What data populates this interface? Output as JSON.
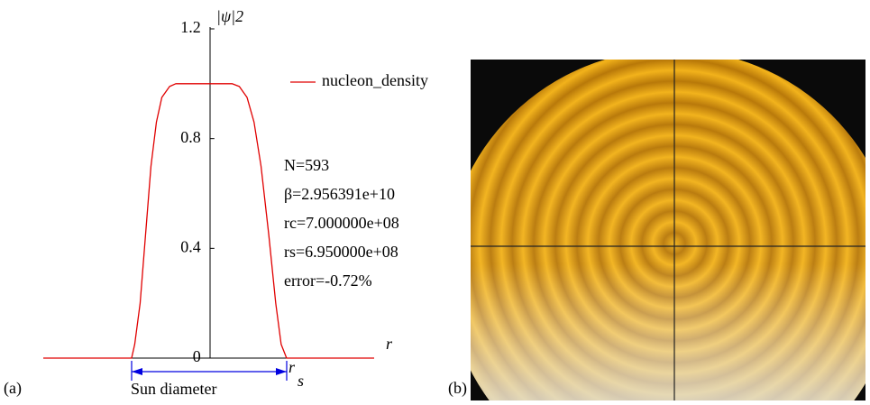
{
  "chart_data": {
    "type": "line",
    "y_label": "|ψ|2",
    "x_label": "r",
    "x": [
      -2.15,
      -1.01,
      -0.97,
      -0.9,
      -0.83,
      -0.76,
      -0.69,
      -0.62,
      -0.52,
      -0.44,
      0.29,
      0.38,
      0.48,
      0.57,
      0.66,
      0.76,
      0.85,
      0.92,
      0.99,
      2.12
    ],
    "series": [
      {
        "name": "nucleon_density",
        "color": "#e00000",
        "values": [
          0,
          0,
          0.05,
          0.2,
          0.45,
          0.7,
          0.86,
          0.95,
          0.99,
          1,
          1,
          0.99,
          0.95,
          0.86,
          0.7,
          0.45,
          0.2,
          0.05,
          0,
          0
        ]
      }
    ],
    "xlim": [
      -2.15,
      2.12
    ],
    "ylim": [
      0,
      1.2
    ],
    "yticks": [
      0,
      0.4,
      0.8,
      1.2
    ],
    "annotations": [
      "N=593",
      "β=2.956391e+10",
      "rc=7.000000e+08",
      "rs=6.950000e+08",
      "error=-0.72%"
    ],
    "diameter_label": "Sun diameter",
    "radius_marker": {
      "base": "r",
      "subscript": "s"
    }
  },
  "panels": {
    "a": "(a)",
    "b": "(b)"
  }
}
